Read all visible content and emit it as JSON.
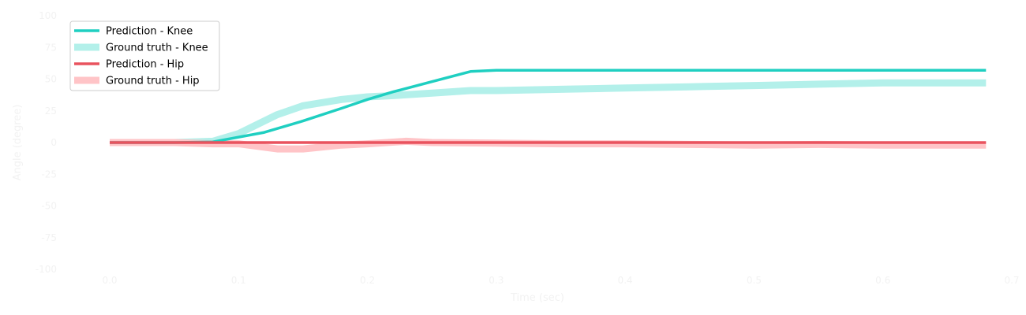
{
  "chart_data": {
    "type": "line",
    "title": "",
    "xlabel": "Time (sec)",
    "ylabel": "Angle (degree)",
    "xlim": [
      -0.03,
      0.7
    ],
    "ylim": [
      -100,
      100
    ],
    "x_ticks": [
      "0.0",
      "0.1",
      "0.2",
      "0.3",
      "0.4",
      "0.5",
      "0.6",
      "0.7"
    ],
    "x_tick_values": [
      0.0,
      0.1,
      0.2,
      0.3,
      0.4,
      0.5,
      0.6,
      0.7
    ],
    "y_ticks": [
      "-100",
      "-75",
      "-50",
      "-25",
      "0",
      "25",
      "50",
      "75",
      "100"
    ],
    "y_tick_values": [
      -100,
      -75,
      -50,
      -25,
      0,
      25,
      50,
      75,
      100
    ],
    "grid": false,
    "legend_position": "top-left",
    "series": [
      {
        "name": "Prediction - Knee",
        "color": "#1fcfc1",
        "style": "prediction",
        "x": [
          0.0,
          0.05,
          0.08,
          0.12,
          0.15,
          0.18,
          0.2,
          0.22,
          0.25,
          0.28,
          0.3,
          0.68
        ],
        "y": [
          0,
          0,
          0.5,
          8,
          17,
          27,
          34,
          40,
          48,
          56,
          57,
          57
        ]
      },
      {
        "name": "Ground truth - Knee",
        "color": "#b3f0ea",
        "style": "ground_truth",
        "x": [
          0.0,
          0.05,
          0.08,
          0.1,
          0.13,
          0.15,
          0.18,
          0.2,
          0.22,
          0.25,
          0.28,
          0.3,
          0.35,
          0.4,
          0.45,
          0.5,
          0.55,
          0.6,
          0.68
        ],
        "y": [
          0,
          0,
          1,
          7,
          22,
          29,
          34,
          36,
          37,
          39,
          41,
          41,
          42,
          43,
          44,
          45,
          46,
          47,
          47
        ]
      },
      {
        "name": "Prediction - Hip",
        "color": "#e9535e",
        "style": "prediction",
        "x": [
          0.0,
          0.1,
          0.2,
          0.3,
          0.4,
          0.5,
          0.6,
          0.68
        ],
        "y": [
          0,
          0,
          0,
          0,
          0,
          0,
          0,
          0
        ]
      },
      {
        "name": "Ground truth - Hip",
        "color": "#ffc4c7",
        "style": "ground_truth",
        "x": [
          0.0,
          0.05,
          0.08,
          0.1,
          0.13,
          0.15,
          0.18,
          0.2,
          0.23,
          0.25,
          0.3,
          0.35,
          0.4,
          0.45,
          0.5,
          0.55,
          0.6,
          0.68
        ],
        "y": [
          0,
          0,
          -1,
          -1,
          -5,
          -5,
          -2,
          -1,
          1,
          0,
          -0.5,
          -1,
          -1,
          -1.5,
          -2,
          -1.5,
          -2,
          -2
        ]
      }
    ]
  }
}
